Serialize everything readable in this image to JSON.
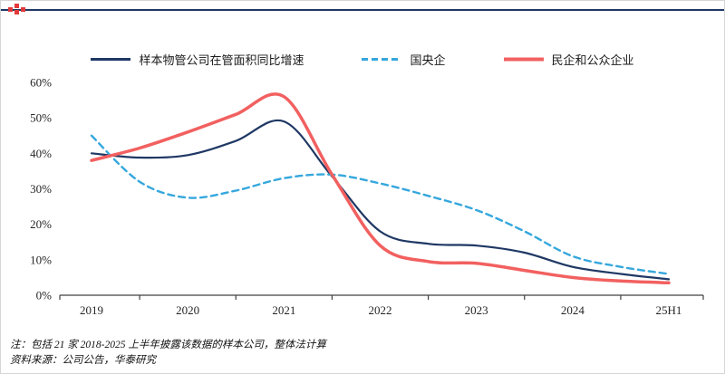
{
  "header": {
    "rule_color": "#1f3864",
    "logo_color": "#e23a3a"
  },
  "chart_data": {
    "type": "line",
    "title": "",
    "xlabel": "",
    "ylabel": "",
    "grid": false,
    "legend_position": "top",
    "ylim": [
      0,
      60
    ],
    "y_tick_step": 10,
    "y_tick_labels": [
      "0%",
      "10%",
      "20%",
      "30%",
      "40%",
      "50%",
      "60%"
    ],
    "x_tick_labels": [
      "2019",
      "2020",
      "2021",
      "2022",
      "2023",
      "2024",
      "25H1"
    ],
    "x_tick_values": [
      2019,
      2020,
      2021,
      2022,
      2023,
      2024,
      2025
    ],
    "x": [
      2019,
      2019.5,
      2020,
      2020.5,
      2021,
      2021.5,
      2022,
      2022.5,
      2023,
      2023.5,
      2024,
      2024.5,
      2025
    ],
    "series": [
      {
        "name": "样本物管公司在管面积同比增速",
        "color": "#1f3864",
        "style": "solid",
        "width": 2.2,
        "values": [
          40,
          38.8,
          39.5,
          43.5,
          49,
          33.5,
          18,
          14.5,
          14,
          12,
          8,
          6,
          4.5
        ]
      },
      {
        "name": "国央企",
        "color": "#35a7dd",
        "style": "dashed",
        "width": 2.4,
        "values": [
          45,
          32,
          27.5,
          29.5,
          33,
          34,
          31.5,
          28,
          24,
          18,
          11,
          8,
          6
        ]
      },
      {
        "name": "民企和公众企业",
        "color": "#f26060",
        "style": "solid",
        "width": 3.5,
        "values": [
          38,
          41.5,
          46,
          51,
          56,
          34,
          14,
          9.5,
          9,
          7,
          5,
          4,
          3.5
        ]
      }
    ]
  },
  "footnotes": {
    "note": "注：包括 21 家 2018-2025 上半年披露该数据的样本公司，整体法计算",
    "source": "资料来源：公司公告，华泰研究"
  }
}
